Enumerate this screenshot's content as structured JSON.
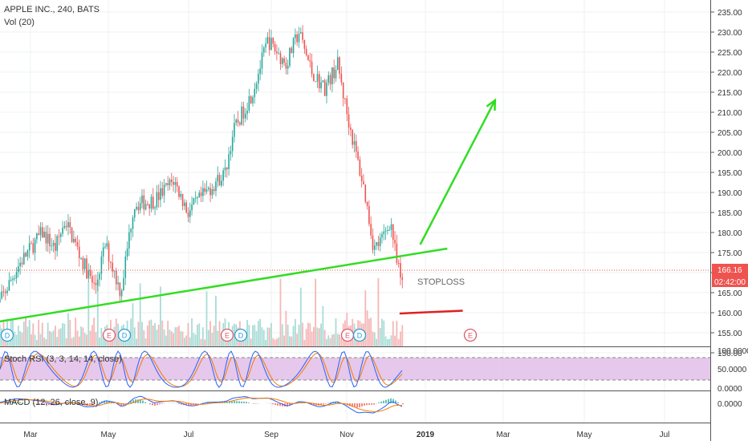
{
  "header": {
    "symbol": "APPLE INC., 240, BATS",
    "volume_label": "Vol (20)"
  },
  "price_axis": {
    "ticks": [
      "235.00",
      "230.00",
      "225.00",
      "220.00",
      "215.00",
      "210.00",
      "205.00",
      "200.00",
      "195.00",
      "190.00",
      "185.00",
      "180.00",
      "175.00",
      "170.00",
      "165.00",
      "160.00",
      "155.00",
      "150.00"
    ],
    "last_price": "166.16",
    "countdown": "02:42:00",
    "last_price_color": "#ef5350"
  },
  "stoch": {
    "label": "Stoch RSI (3, 3, 14, 14, close)",
    "ticks": [
      "100.0000",
      "50.0000",
      "0.0000"
    ],
    "fill_color": "#e1bee7"
  },
  "macd": {
    "label": "MACD (12, 26, close, 9)",
    "ticks": [
      "0.0000"
    ]
  },
  "time_axis": {
    "labels": [
      "Mar",
      "May",
      "Jul",
      "Sep",
      "Nov",
      "2019",
      "Mar",
      "May",
      "Jul"
    ]
  },
  "annotations": {
    "stoploss_label": "STOPLOSS",
    "trendline_color": "#33dd22",
    "stoploss_color": "#e02020"
  },
  "events": [
    "D",
    "E",
    "D",
    "E",
    "D",
    "E",
    "D",
    "E"
  ],
  "colors": {
    "up": "#26a69a",
    "down": "#ef5350",
    "stoch_k": "#2962ff",
    "stoch_d": "#f57c00",
    "macd_line": "#2962ff",
    "signal_line": "#f57c00"
  },
  "chart_data": {
    "type": "candlestick",
    "ylim": [
      147,
      237
    ],
    "grid": true,
    "price_path": [
      {
        "date": "2018-02-01",
        "close": 160
      },
      {
        "date": "2018-02-20",
        "close": 172
      },
      {
        "date": "2018-03-10",
        "close": 180
      },
      {
        "date": "2018-03-20",
        "close": 176
      },
      {
        "date": "2018-03-28",
        "close": 183
      },
      {
        "date": "2018-04-10",
        "close": 173
      },
      {
        "date": "2018-04-20",
        "close": 166
      },
      {
        "date": "2018-04-28",
        "close": 177
      },
      {
        "date": "2018-05-10",
        "close": 165
      },
      {
        "date": "2018-05-20",
        "close": 187
      },
      {
        "date": "2018-06-05",
        "close": 188
      },
      {
        "date": "2018-06-20",
        "close": 193
      },
      {
        "date": "2018-07-01",
        "close": 185
      },
      {
        "date": "2018-07-15",
        "close": 190
      },
      {
        "date": "2018-07-30",
        "close": 195
      },
      {
        "date": "2018-08-05",
        "close": 205
      },
      {
        "date": "2018-08-20",
        "close": 215
      },
      {
        "date": "2018-09-01",
        "close": 228
      },
      {
        "date": "2018-09-15",
        "close": 222
      },
      {
        "date": "2018-09-25",
        "close": 230
      },
      {
        "date": "2018-10-05",
        "close": 220
      },
      {
        "date": "2018-10-15",
        "close": 216
      },
      {
        "date": "2018-10-25",
        "close": 222
      },
      {
        "date": "2018-11-01",
        "close": 210
      },
      {
        "date": "2018-11-08",
        "close": 200
      },
      {
        "date": "2018-11-15",
        "close": 190
      },
      {
        "date": "2018-11-22",
        "close": 176
      },
      {
        "date": "2018-11-28",
        "close": 178
      },
      {
        "date": "2018-12-05",
        "close": 183
      },
      {
        "date": "2018-12-10",
        "close": 172
      },
      {
        "date": "2018-12-15",
        "close": 166
      }
    ],
    "trendline": [
      {
        "date": "2018-01-30",
        "price": 157.5
      },
      {
        "date": "2019-01-18",
        "price": 176
      }
    ],
    "projection_arrow": [
      {
        "date": "2018-12-28",
        "price": 177
      },
      {
        "date": "2019-02-24",
        "price": 213
      }
    ],
    "stoploss_line": [
      {
        "date": "2018-12-12",
        "price": 159.8
      },
      {
        "date": "2019-01-30",
        "price": 160.5
      }
    ]
  }
}
